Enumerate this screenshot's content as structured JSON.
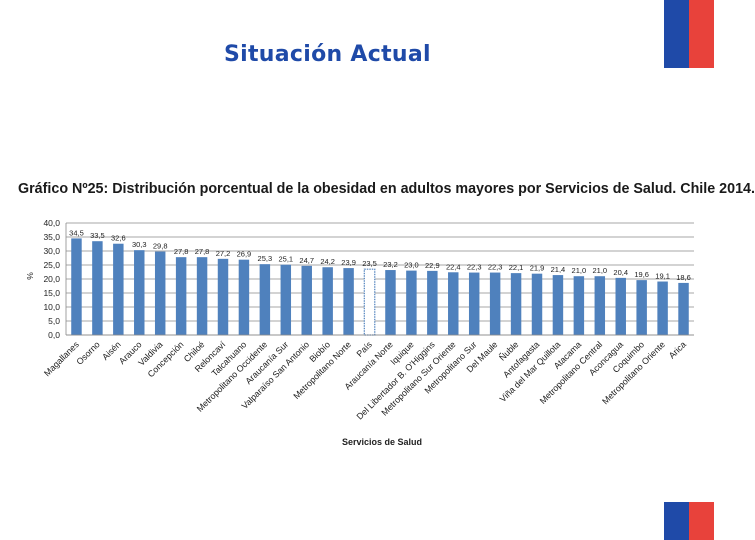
{
  "slide": {
    "title": "Situación Actual"
  },
  "colors": {
    "brand_blue": "#1f4aa8",
    "brand_red": "#e8423b",
    "bar_blue": "#4f81bd"
  },
  "chart_data": {
    "type": "bar",
    "title": "Gráfico Nº25: Distribución porcentual de la obesidad en adultos mayores por Servicios de Salud. Chile 2014.",
    "xlabel": "Servicios de Salud",
    "ylabel": "%",
    "ylim": [
      0,
      40
    ],
    "yticks": [
      "0,0",
      "5,0",
      "10,0",
      "15,0",
      "20,0",
      "25,0",
      "30,0",
      "35,0",
      "40,0"
    ],
    "grid": true,
    "highlight_category": "País",
    "categories": [
      "Magallanes",
      "Osorno",
      "Aisén",
      "Arauco",
      "Valdivia",
      "Concepción",
      "Chiloé",
      "Reloncaví",
      "Talcahuano",
      "Metropolitano Occidente",
      "Araucanía Sur",
      "Valparaíso San Antonio",
      "Biobío",
      "Metropolitano Norte",
      "País",
      "Araucanía Norte",
      "Iquique",
      "Del Libertador B. O'Higgins",
      "Metropolitano Sur Oriente",
      "Metropolitano Sur",
      "Del Maule",
      "Ñuble",
      "Antofagasta",
      "Viña del Mar Quillota",
      "Atacama",
      "Metropolitano Central",
      "Aconcagua",
      "Coquimbo",
      "Metropolitano Oriente",
      "Arica"
    ],
    "values": [
      34.5,
      33.5,
      32.6,
      30.3,
      29.8,
      27.8,
      27.8,
      27.2,
      26.9,
      25.3,
      25.1,
      24.7,
      24.2,
      23.9,
      23.5,
      23.2,
      23.0,
      22.9,
      22.4,
      22.3,
      22.3,
      22.1,
      21.9,
      21.4,
      21.0,
      21.0,
      20.4,
      19.6,
      19.1,
      18.6
    ],
    "data_labels": [
      "34,5",
      "33,5",
      "32,6",
      "30,3",
      "29,8",
      "27,8",
      "27,8",
      "27,2",
      "26,9",
      "25,3",
      "25,1",
      "24,7",
      "24,2",
      "23,9",
      "23,5",
      "23,2",
      "23,0",
      "22,9",
      "22,4",
      "22,3",
      "22,3",
      "22,1",
      "21,9",
      "21,4",
      "21,0",
      "21,0",
      "20,4",
      "19,6",
      "19,1",
      "18,6"
    ]
  }
}
